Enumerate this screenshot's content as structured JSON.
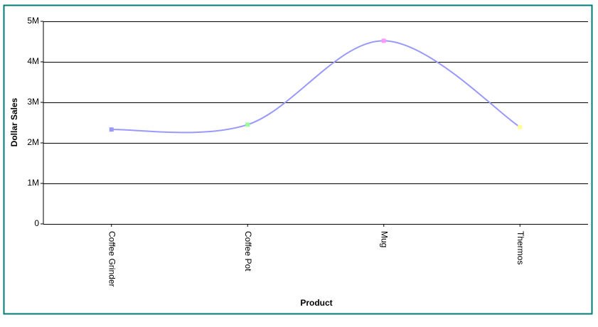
{
  "chart_data": {
    "type": "line",
    "x_label": "Product",
    "y_label": "Dollar Sales",
    "categories": [
      "Coffee Grinder",
      "Coffee Pot",
      "Mug",
      "Thermos"
    ],
    "series": [
      {
        "name": "Dollar Sales",
        "color": "#9999ff",
        "values": [
          2330000,
          2450000,
          4520000,
          2390000
        ]
      }
    ],
    "point_colors": [
      "#9999ff",
      "#99ff99",
      "#ff99ff",
      "#ffff99"
    ],
    "ylim": [
      0,
      5000000
    ],
    "yticks": [
      0,
      {
        "value": 1000000,
        "label": "1M"
      },
      {
        "value": 2000000,
        "label": "2M"
      },
      {
        "value": 3000000,
        "label": "3M"
      },
      {
        "value": 4000000,
        "label": "4M"
      },
      {
        "value": 5000000,
        "label": "5M"
      }
    ],
    "grid": true,
    "smooth": true
  }
}
